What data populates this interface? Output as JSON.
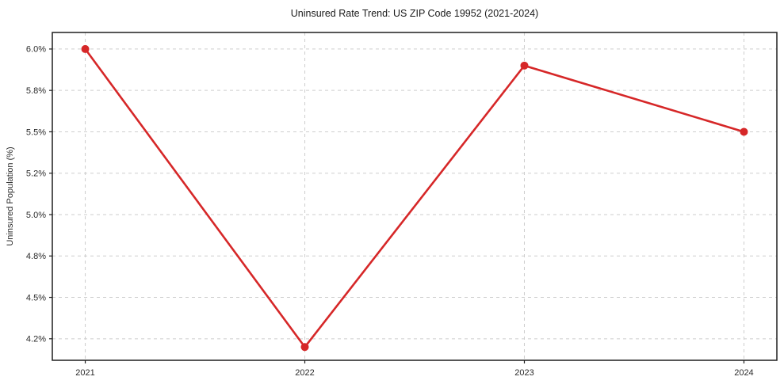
{
  "chart_data": {
    "type": "line",
    "title": "Uninsured Rate Trend: US ZIP Code 19952 (2021-2024)",
    "xlabel": "",
    "ylabel": "Uninsured Population (%)",
    "x": [
      2021,
      2022,
      2023,
      2024
    ],
    "values": [
      6.0,
      4.2,
      5.9,
      5.5
    ],
    "x_ticks": {
      "values": [
        2021,
        2022,
        2023,
        2024
      ],
      "labels": [
        "2021",
        "2022",
        "2023",
        "2024"
      ]
    },
    "y_ticks": {
      "values": [
        6.0,
        5.75,
        5.5,
        5.25,
        5.0,
        4.75,
        4.5,
        4.25
      ],
      "labels": [
        "6.0%",
        "5.8%",
        "5.5%",
        "5.2%",
        "5.0%",
        "4.8%",
        "4.5%",
        "4.2%"
      ]
    },
    "xlim": [
      2020.85,
      2024.15
    ],
    "ylim": [
      4.12,
      6.1
    ],
    "grid": true,
    "grid_style": "dashed",
    "legend": "none",
    "line_color": "#d62728",
    "marker_color": "#d62728",
    "grid_color": "#cdcdcd",
    "spine_color": "#1f1f1f",
    "text_color": "#2b2b2b",
    "title_color": "#1a1a1a",
    "background_color": "#ffffff"
  }
}
